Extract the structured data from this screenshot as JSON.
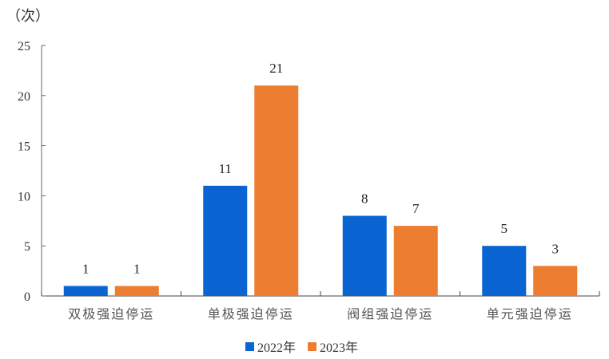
{
  "chart_data": {
    "type": "bar",
    "title": "",
    "ylabel": "（次）",
    "xlabel": "",
    "ylim": [
      0,
      25
    ],
    "yticks": [
      0,
      5,
      10,
      15,
      20,
      25
    ],
    "categories": [
      "双极强迫停运",
      "单极强迫停运",
      "阀组强迫停运",
      "单元强迫停运"
    ],
    "series": [
      {
        "name": "2022年",
        "color": "#0A64D2",
        "values": [
          1,
          11,
          8,
          5
        ]
      },
      {
        "name": "2023年",
        "color": "#ED7D31",
        "values": [
          1,
          21,
          7,
          3
        ]
      }
    ],
    "grid": false,
    "legend_position": "bottom",
    "data_labels": true
  }
}
